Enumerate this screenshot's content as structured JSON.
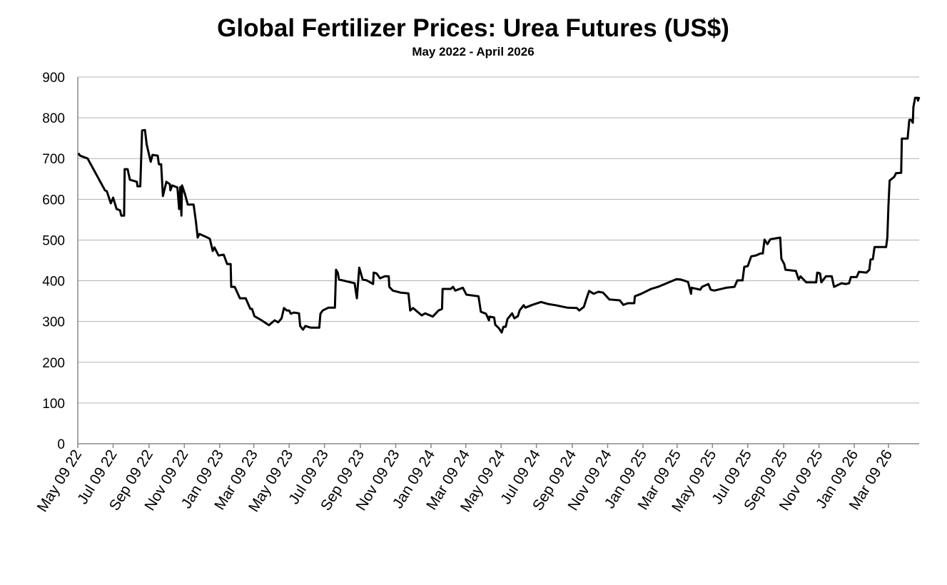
{
  "chart_data": {
    "type": "line",
    "title": "Global Fertilizer Prices: Urea Futures (US$)",
    "subtitle": "May 2022 - April 2026",
    "xlabel": "",
    "ylabel": "",
    "ylim": [
      0,
      900
    ],
    "yticks": [
      0,
      100,
      200,
      300,
      400,
      500,
      600,
      700,
      800,
      900
    ],
    "xlim": [
      "2022-05-09",
      "2026-05-01"
    ],
    "xtick_dates": [
      "2022-05-09",
      "2022-07-09",
      "2022-09-09",
      "2022-11-09",
      "2023-01-09",
      "2023-03-09",
      "2023-05-09",
      "2023-07-09",
      "2023-09-09",
      "2023-11-09",
      "2024-01-09",
      "2024-03-09",
      "2024-05-09",
      "2024-07-09",
      "2024-09-09",
      "2024-11-09",
      "2025-01-09",
      "2025-03-09",
      "2025-05-09",
      "2025-07-09",
      "2025-09-09",
      "2025-11-09",
      "2026-01-09",
      "2026-03-09"
    ],
    "xtick_labels": [
      "May 09 22",
      "Jul 09 22",
      "Sep 09 22",
      "Nov 09 22",
      "Jan 09 23",
      "Mar 09 23",
      "May 09 23",
      "Jul 09 23",
      "Sep 09 23",
      "Nov 09 23",
      "Jan 09 24",
      "Mar 09 24",
      "May 09 24",
      "Jul 09 24",
      "Sep 09 24",
      "Nov 09 24",
      "Jan 09 25",
      "Mar 09 25",
      "May 09 25",
      "Jul 09 25",
      "Sep 09 25",
      "Nov 09 25",
      "Jan 09 26",
      "Mar 09 26"
    ],
    "grid": true,
    "legend": "none",
    "line_color": "#000000",
    "grid_color": "#b3b3b3",
    "series": [
      {
        "points": [
          [
            "2022-05-10",
            713
          ],
          [
            "2022-05-13",
            707
          ],
          [
            "2022-05-26",
            700
          ],
          [
            "2022-06-25",
            622
          ],
          [
            "2022-06-28",
            620
          ],
          [
            "2022-07-05",
            590
          ],
          [
            "2022-07-09",
            604
          ],
          [
            "2022-07-15",
            576
          ],
          [
            "2022-07-21",
            573
          ],
          [
            "2022-07-23",
            560
          ],
          [
            "2022-07-28",
            560
          ],
          [
            "2022-07-29",
            674
          ],
          [
            "2022-08-03",
            674
          ],
          [
            "2022-08-07",
            648
          ],
          [
            "2022-08-19",
            643
          ],
          [
            "2022-08-20",
            632
          ],
          [
            "2022-08-25",
            632
          ],
          [
            "2022-08-28",
            769
          ],
          [
            "2022-09-02",
            770
          ],
          [
            "2022-09-05",
            734
          ],
          [
            "2022-09-12",
            692
          ],
          [
            "2022-09-15",
            709
          ],
          [
            "2022-09-24",
            707
          ],
          [
            "2022-09-26",
            686
          ],
          [
            "2022-09-30",
            686
          ],
          [
            "2022-10-03",
            608
          ],
          [
            "2022-10-09",
            643
          ],
          [
            "2022-10-15",
            637
          ],
          [
            "2022-10-16",
            622
          ],
          [
            "2022-10-19",
            634
          ],
          [
            "2022-10-28",
            629
          ],
          [
            "2022-10-31",
            576
          ],
          [
            "2022-11-02",
            630
          ],
          [
            "2022-11-04",
            560
          ],
          [
            "2022-11-05",
            634
          ],
          [
            "2022-11-10",
            613
          ],
          [
            "2022-11-15",
            587
          ],
          [
            "2022-11-25",
            587
          ],
          [
            "2022-11-29",
            546
          ],
          [
            "2022-12-02",
            506
          ],
          [
            "2022-12-05",
            515
          ],
          [
            "2022-12-16",
            508
          ],
          [
            "2022-12-23",
            503
          ],
          [
            "2022-12-28",
            473
          ],
          [
            "2022-12-31",
            482
          ],
          [
            "2023-01-07",
            462
          ],
          [
            "2023-01-16",
            464
          ],
          [
            "2023-01-22",
            441
          ],
          [
            "2023-01-28",
            441
          ],
          [
            "2023-01-29",
            385
          ],
          [
            "2023-02-04",
            385
          ],
          [
            "2023-02-13",
            357
          ],
          [
            "2023-02-23",
            357
          ],
          [
            "2023-03-03",
            331
          ],
          [
            "2023-03-06",
            331
          ],
          [
            "2023-03-10",
            313
          ],
          [
            "2023-03-20",
            305
          ],
          [
            "2023-04-04",
            291
          ],
          [
            "2023-04-14",
            303
          ],
          [
            "2023-04-20",
            298
          ],
          [
            "2023-04-26",
            308
          ],
          [
            "2023-04-30",
            333
          ],
          [
            "2023-05-05",
            327
          ],
          [
            "2023-05-09",
            327
          ],
          [
            "2023-05-12",
            319
          ],
          [
            "2023-05-17",
            322
          ],
          [
            "2023-05-26",
            320
          ],
          [
            "2023-05-28",
            289
          ],
          [
            "2023-06-02",
            280
          ],
          [
            "2023-06-06",
            289
          ],
          [
            "2023-06-15",
            285
          ],
          [
            "2023-06-30",
            285
          ],
          [
            "2023-07-02",
            319
          ],
          [
            "2023-07-06",
            327
          ],
          [
            "2023-07-16",
            334
          ],
          [
            "2023-07-27",
            334
          ],
          [
            "2023-07-29",
            427
          ],
          [
            "2023-08-01",
            420
          ],
          [
            "2023-08-03",
            403
          ],
          [
            "2023-08-30",
            394
          ],
          [
            "2023-09-03",
            357
          ],
          [
            "2023-09-07",
            432
          ],
          [
            "2023-09-13",
            403
          ],
          [
            "2023-09-20",
            401
          ],
          [
            "2023-10-01",
            392
          ],
          [
            "2023-10-02",
            420
          ],
          [
            "2023-10-07",
            418
          ],
          [
            "2023-10-13",
            406
          ],
          [
            "2023-10-21",
            411
          ],
          [
            "2023-10-28",
            411
          ],
          [
            "2023-10-29",
            385
          ],
          [
            "2023-11-04",
            376
          ],
          [
            "2023-11-17",
            371
          ],
          [
            "2023-12-01",
            369
          ],
          [
            "2023-12-04",
            327
          ],
          [
            "2023-12-09",
            333
          ],
          [
            "2023-12-24",
            315
          ],
          [
            "2023-12-30",
            320
          ],
          [
            "2024-01-12",
            312
          ],
          [
            "2024-01-22",
            327
          ],
          [
            "2024-01-28",
            331
          ],
          [
            "2024-01-29",
            380
          ],
          [
            "2024-02-12",
            380
          ],
          [
            "2024-02-16",
            385
          ],
          [
            "2024-02-20",
            376
          ],
          [
            "2024-03-04",
            383
          ],
          [
            "2024-03-10",
            366
          ],
          [
            "2024-03-31",
            362
          ],
          [
            "2024-04-04",
            324
          ],
          [
            "2024-04-13",
            319
          ],
          [
            "2024-04-18",
            303
          ],
          [
            "2024-04-19",
            312
          ],
          [
            "2024-04-27",
            310
          ],
          [
            "2024-04-29",
            292
          ],
          [
            "2024-05-05",
            284
          ],
          [
            "2024-05-10",
            273
          ],
          [
            "2024-05-13",
            287
          ],
          [
            "2024-05-17",
            287
          ],
          [
            "2024-05-20",
            306
          ],
          [
            "2024-05-28",
            320
          ],
          [
            "2024-06-01",
            308
          ],
          [
            "2024-06-07",
            313
          ],
          [
            "2024-06-10",
            327
          ],
          [
            "2024-06-17",
            340
          ],
          [
            "2024-06-20",
            334
          ],
          [
            "2024-07-02",
            341
          ],
          [
            "2024-07-17",
            348
          ],
          [
            "2024-07-29",
            343
          ],
          [
            "2024-08-11",
            340
          ],
          [
            "2024-08-31",
            334
          ],
          [
            "2024-09-17",
            333
          ],
          [
            "2024-09-21",
            327
          ],
          [
            "2024-09-29",
            336
          ],
          [
            "2024-10-03",
            354
          ],
          [
            "2024-10-08",
            375
          ],
          [
            "2024-10-16",
            368
          ],
          [
            "2024-10-24",
            373
          ],
          [
            "2024-11-01",
            371
          ],
          [
            "2024-11-12",
            354
          ],
          [
            "2024-11-30",
            352
          ],
          [
            "2024-12-06",
            341
          ],
          [
            "2024-12-14",
            345
          ],
          [
            "2024-12-25",
            345
          ],
          [
            "2024-12-26",
            362
          ],
          [
            "2025-01-06",
            368
          ],
          [
            "2025-01-23",
            380
          ],
          [
            "2025-02-04",
            385
          ],
          [
            "2025-03-08",
            404
          ],
          [
            "2025-03-15",
            403
          ],
          [
            "2025-03-24",
            399
          ],
          [
            "2025-03-28",
            397
          ],
          [
            "2025-04-02",
            368
          ],
          [
            "2025-04-03",
            383
          ],
          [
            "2025-04-18",
            378
          ],
          [
            "2025-04-21",
            385
          ],
          [
            "2025-05-02",
            392
          ],
          [
            "2025-05-06",
            378
          ],
          [
            "2025-05-12",
            376
          ],
          [
            "2025-06-02",
            383
          ],
          [
            "2025-06-16",
            385
          ],
          [
            "2025-06-21",
            401
          ],
          [
            "2025-06-30",
            401
          ],
          [
            "2025-07-03",
            434
          ],
          [
            "2025-07-09",
            436
          ],
          [
            "2025-07-15",
            460
          ],
          [
            "2025-07-23",
            462
          ],
          [
            "2025-07-31",
            467
          ],
          [
            "2025-08-04",
            467
          ],
          [
            "2025-08-07",
            501
          ],
          [
            "2025-08-12",
            490
          ],
          [
            "2025-08-17",
            502
          ],
          [
            "2025-09-03",
            506
          ],
          [
            "2025-09-05",
            454
          ],
          [
            "2025-09-10",
            441
          ],
          [
            "2025-09-12",
            427
          ],
          [
            "2025-09-30",
            424
          ],
          [
            "2025-10-05",
            403
          ],
          [
            "2025-10-08",
            411
          ],
          [
            "2025-10-18",
            396
          ],
          [
            "2025-11-04",
            396
          ],
          [
            "2025-11-06",
            420
          ],
          [
            "2025-11-11",
            418
          ],
          [
            "2025-11-13",
            396
          ],
          [
            "2025-11-21",
            411
          ],
          [
            "2025-12-01",
            411
          ],
          [
            "2025-12-05",
            385
          ],
          [
            "2025-12-18",
            394
          ],
          [
            "2025-12-25",
            392
          ],
          [
            "2025-12-31",
            394
          ],
          [
            "2026-01-03",
            409
          ],
          [
            "2026-01-13",
            409
          ],
          [
            "2026-01-17",
            422
          ],
          [
            "2026-01-30",
            420
          ],
          [
            "2026-02-04",
            427
          ],
          [
            "2026-02-06",
            452
          ],
          [
            "2026-02-10",
            453
          ],
          [
            "2026-02-13",
            483
          ],
          [
            "2026-03-05",
            483
          ],
          [
            "2026-03-07",
            506
          ],
          [
            "2026-03-09",
            587
          ],
          [
            "2026-03-11",
            646
          ],
          [
            "2026-03-19",
            655
          ],
          [
            "2026-03-22",
            664
          ],
          [
            "2026-03-31",
            665
          ],
          [
            "2026-04-01",
            749
          ],
          [
            "2026-04-11",
            749
          ],
          [
            "2026-04-14",
            795
          ],
          [
            "2026-04-17",
            795
          ],
          [
            "2026-04-20",
            788
          ],
          [
            "2026-04-21",
            826
          ],
          [
            "2026-04-24",
            849
          ],
          [
            "2026-04-28",
            849
          ],
          [
            "2026-04-29",
            842
          ],
          [
            "2026-05-01",
            851
          ]
        ]
      }
    ]
  }
}
